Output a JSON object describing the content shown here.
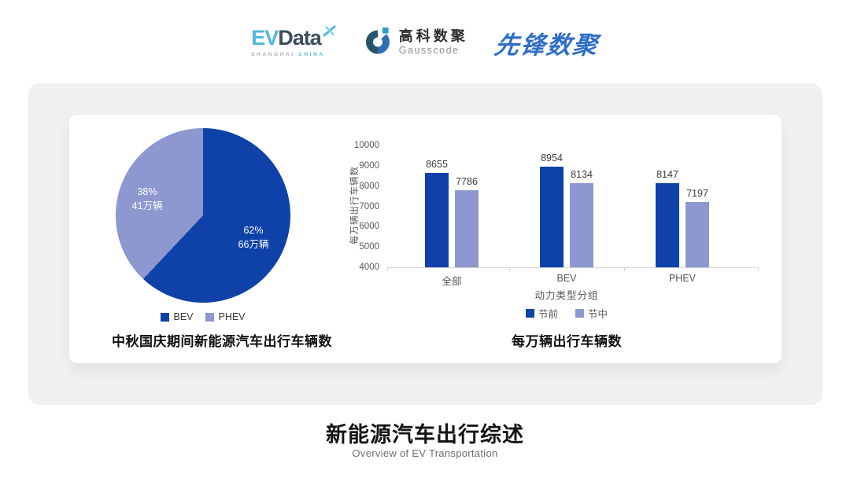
{
  "header": {
    "evdata": {
      "part1": "EV",
      "part2": "Data",
      "tagline_left": "SHANGHAI",
      "tagline_right": "CHINA"
    },
    "gausscode": {
      "name_cn": "高科数聚",
      "name_en": "Gausscode"
    },
    "pioneer": {
      "name": "先锋数聚"
    }
  },
  "chart_data": [
    {
      "type": "pie",
      "title": "中秋国庆期间新能源汽车出行车辆数",
      "labels": [
        "BEV",
        "PHEV"
      ],
      "values_percent": [
        62,
        38
      ],
      "values_text": [
        "66万辆",
        "41万辆"
      ],
      "annotations": [
        {
          "percent": "62%",
          "amount": "66万辆"
        },
        {
          "percent": "38%",
          "amount": "41万辆"
        }
      ],
      "colors": [
        "#0f42a8",
        "#8d97d0"
      ],
      "start_angle": "top",
      "direction": "clockwise",
      "legend_position": "bottom"
    },
    {
      "type": "bar",
      "title": "每万辆出行车辆数",
      "categories": [
        "全部",
        "BEV",
        "PHEV"
      ],
      "series": [
        {
          "name": "节前",
          "color": "#0f42a8",
          "values": [
            8655,
            8954,
            8147
          ]
        },
        {
          "name": "节中",
          "color": "#8d97d0",
          "values": [
            7786,
            8134,
            7197
          ]
        }
      ],
      "xlabel": "动力类型分组",
      "ylabel": "每万辆出行车辆数",
      "ylim": [
        4000,
        10000
      ],
      "ytick_step": 1000,
      "grid": false,
      "legend_position": "bottom"
    }
  ],
  "footer": {
    "title": "新能源汽车出行综述",
    "subtitle": "Overview of EV Transportation"
  }
}
